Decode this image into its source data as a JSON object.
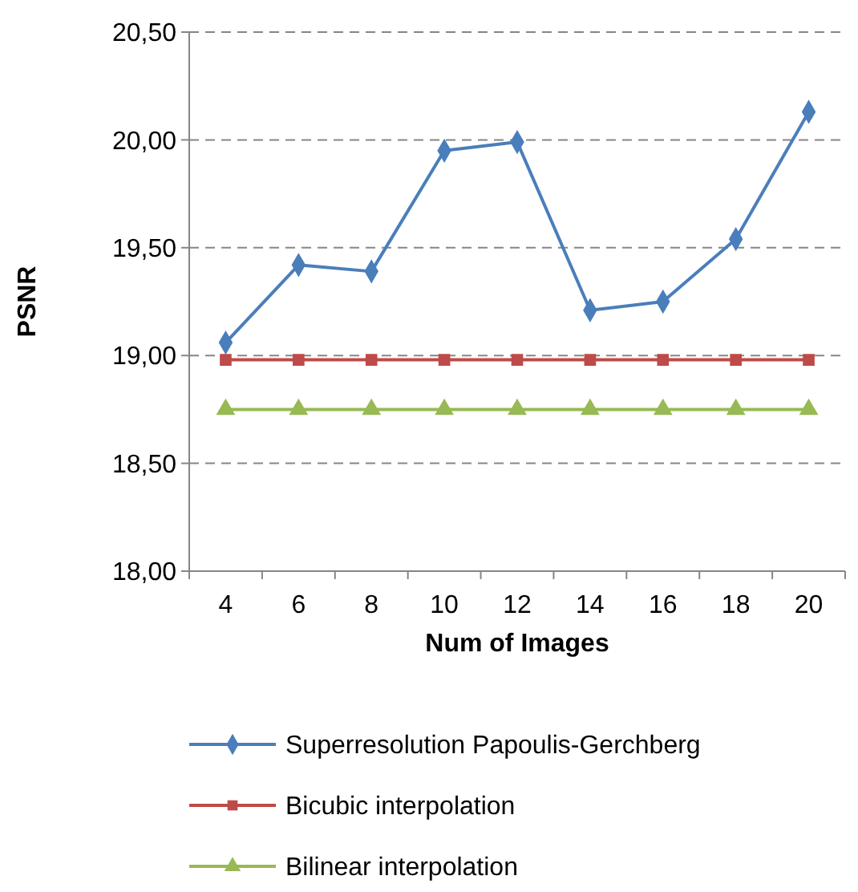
{
  "chart_data": {
    "type": "line",
    "xlabel": "Num of Images",
    "ylabel": "PSNR",
    "categories": [
      "4",
      "6",
      "8",
      "10",
      "12",
      "14",
      "16",
      "18",
      "20"
    ],
    "ylim": [
      18,
      20.5
    ],
    "yticks": [
      {
        "value": 18,
        "label": "18,00"
      },
      {
        "value": 18.5,
        "label": "18,50"
      },
      {
        "value": 19,
        "label": "19,00"
      },
      {
        "value": 19.5,
        "label": "19,50"
      },
      {
        "value": 20,
        "label": "20,00"
      },
      {
        "value": 20.5,
        "label": "20,50"
      }
    ],
    "grid": "y",
    "legend": "bottom",
    "line_style": "solid",
    "series": [
      {
        "name": "Superresolution Papoulis-Gerchberg",
        "color": "#4a7ebb",
        "marker": "diamond",
        "values": [
          19.06,
          19.42,
          19.39,
          19.95,
          19.99,
          19.21,
          19.25,
          19.54,
          20.13
        ]
      },
      {
        "name": "Bicubic interpolation",
        "color": "#be4b48",
        "marker": "square",
        "values": [
          18.98,
          18.98,
          18.98,
          18.98,
          18.98,
          18.98,
          18.98,
          18.98,
          18.98
        ]
      },
      {
        "name": "Bilinear interpolation",
        "color": "#98b954",
        "marker": "triangle",
        "values": [
          18.75,
          18.75,
          18.75,
          18.75,
          18.75,
          18.75,
          18.75,
          18.75,
          18.75
        ]
      }
    ]
  }
}
